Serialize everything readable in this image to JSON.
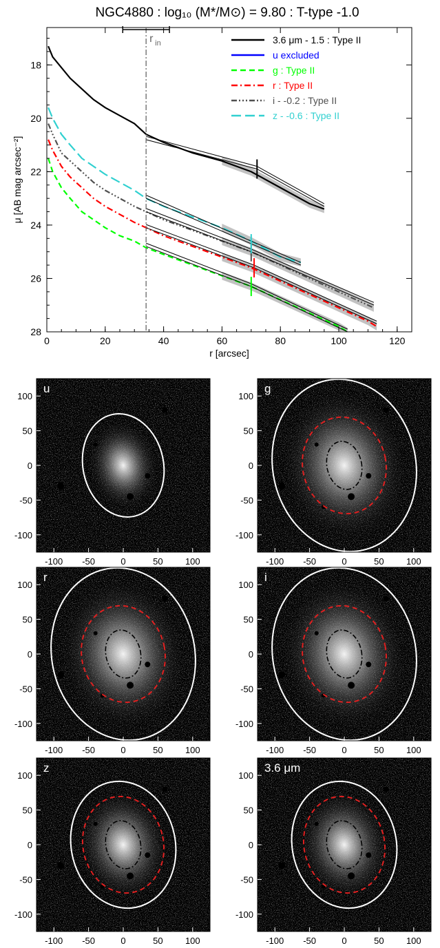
{
  "chart_data": [
    {
      "type": "line",
      "title": "NGC4880 : log₁₀ (M*/M⊙) = 9.80 : T-type -1.0",
      "xlabel": "r [arcsec]",
      "ylabel": "μ [AB mag arcsec⁻²]",
      "xlim": [
        0,
        125
      ],
      "ylim": [
        28,
        16.6
      ],
      "y_inverted": true,
      "xticks": [
        "0",
        "20",
        "40",
        "60",
        "80",
        "100",
        "120"
      ],
      "yticks": [
        "18",
        "20",
        "22",
        "24",
        "26",
        "28"
      ],
      "annotation": {
        "label": "r",
        "subscript": "in",
        "r_in": 34,
        "bar_range": [
          26,
          42
        ]
      },
      "legend_position": "top-right",
      "series": [
        {
          "name": "3.6 μm - 1.5 : Type II",
          "color": "#000000",
          "dash": "solid",
          "x": [
            0.5,
            2,
            5,
            8,
            12,
            16,
            20,
            25,
            30,
            34,
            40,
            50,
            60,
            70,
            80,
            90,
            95
          ],
          "y": [
            17.3,
            17.7,
            18.1,
            18.5,
            18.9,
            19.3,
            19.6,
            19.9,
            20.2,
            20.6,
            20.9,
            21.3,
            21.6,
            22.0,
            22.6,
            23.2,
            23.4
          ],
          "break_r": 72,
          "fit_y": [
            20.8,
            21.9,
            23.3
          ]
        },
        {
          "name": "u excluded",
          "color": "#0000ff",
          "dash": "solid",
          "x": [],
          "y": []
        },
        {
          "name": "g : Type II",
          "color": "#00ff00",
          "dash": "dashed",
          "x": [
            0.5,
            2,
            5,
            8,
            12,
            16,
            20,
            25,
            30,
            34,
            40,
            50,
            60,
            70,
            80,
            90,
            100,
            103
          ],
          "y": [
            21.5,
            22.0,
            22.6,
            23.0,
            23.5,
            23.8,
            24.1,
            24.4,
            24.6,
            24.85,
            25.1,
            25.5,
            25.9,
            26.3,
            26.8,
            27.3,
            27.8,
            28.0
          ],
          "break_r": 70,
          "fit_y": [
            24.8,
            26.3,
            28.0
          ]
        },
        {
          "name": "r : Type II",
          "color": "#ff0000",
          "dash": "dashdot",
          "x": [
            0.5,
            2,
            5,
            8,
            12,
            16,
            20,
            25,
            30,
            34,
            40,
            50,
            60,
            70,
            80,
            90,
            100,
            110,
            113
          ],
          "y": [
            20.8,
            21.2,
            21.8,
            22.2,
            22.6,
            23.0,
            23.3,
            23.6,
            23.9,
            24.1,
            24.4,
            24.8,
            25.2,
            25.6,
            26.1,
            26.6,
            27.1,
            27.6,
            27.8
          ],
          "break_r": 71,
          "fit_y": [
            24.1,
            25.6,
            27.7
          ]
        },
        {
          "name": "i - -0.2 : Type II",
          "color": "#505050",
          "dash": "dashdotdotdot",
          "x": [
            0.5,
            2,
            5,
            8,
            12,
            16,
            20,
            25,
            30,
            34,
            40,
            50,
            60,
            70,
            80,
            90,
            100,
            112
          ],
          "y": [
            20.2,
            20.6,
            21.3,
            21.6,
            22.0,
            22.4,
            22.7,
            23.0,
            23.3,
            23.5,
            23.8,
            24.2,
            24.6,
            25.0,
            25.5,
            26.0,
            26.5,
            27.1
          ],
          "break_r": 70,
          "fit_y": [
            23.5,
            25.0,
            27.0
          ]
        },
        {
          "name": "z - -0.6 : Type II",
          "color": "#30d0d0",
          "dash": "longdash",
          "x": [
            0.5,
            2,
            5,
            8,
            12,
            16,
            20,
            25,
            30,
            34,
            40,
            50,
            60,
            70,
            80,
            87
          ],
          "y": [
            19.6,
            20.0,
            20.6,
            21.0,
            21.5,
            21.8,
            22.1,
            22.4,
            22.7,
            23.0,
            23.3,
            23.7,
            24.1,
            24.6,
            25.2,
            25.4
          ],
          "break_r": 70,
          "fit_y": [
            23.0,
            24.7,
            25.5
          ]
        }
      ]
    },
    {
      "type": "image",
      "panels": [
        {
          "label": "u",
          "outer_ellipse": true,
          "inner_ellipse": false,
          "core_ellipse": false,
          "outer_axes": [
            58,
            75
          ],
          "mid_axes": [
            0,
            0
          ],
          "core_axes": [
            0,
            0
          ]
        },
        {
          "label": "g",
          "outer_ellipse": true,
          "inner_ellipse": true,
          "core_ellipse": true,
          "outer_axes": [
            103,
            125
          ],
          "mid_axes": [
            60,
            70
          ],
          "core_axes": [
            25,
            35
          ]
        },
        {
          "label": "r",
          "outer_ellipse": true,
          "inner_ellipse": true,
          "core_ellipse": true,
          "outer_axes": [
            103,
            125
          ],
          "mid_axes": [
            60,
            70
          ],
          "core_axes": [
            25,
            35
          ]
        },
        {
          "label": "i",
          "outer_ellipse": true,
          "inner_ellipse": true,
          "core_ellipse": true,
          "outer_axes": [
            103,
            125
          ],
          "mid_axes": [
            60,
            70
          ],
          "core_axes": [
            25,
            35
          ]
        },
        {
          "label": "z",
          "outer_ellipse": true,
          "inner_ellipse": true,
          "core_ellipse": true,
          "outer_axes": [
            75,
            92
          ],
          "mid_axes": [
            58,
            70
          ],
          "core_axes": [
            25,
            35
          ]
        },
        {
          "label": "3.6 μm",
          "outer_ellipse": true,
          "inner_ellipse": true,
          "core_ellipse": true,
          "outer_axes": [
            75,
            92
          ],
          "mid_axes": [
            58,
            70
          ],
          "core_axes": [
            25,
            35
          ]
        }
      ],
      "xticks": [
        "-100",
        "-50",
        "0",
        "50",
        "100"
      ],
      "yticks": [
        "100",
        "50",
        "0",
        "-50",
        "-100"
      ],
      "tick_values": [
        -100,
        -50,
        0,
        50,
        100
      ],
      "range": [
        -125,
        125
      ]
    }
  ]
}
